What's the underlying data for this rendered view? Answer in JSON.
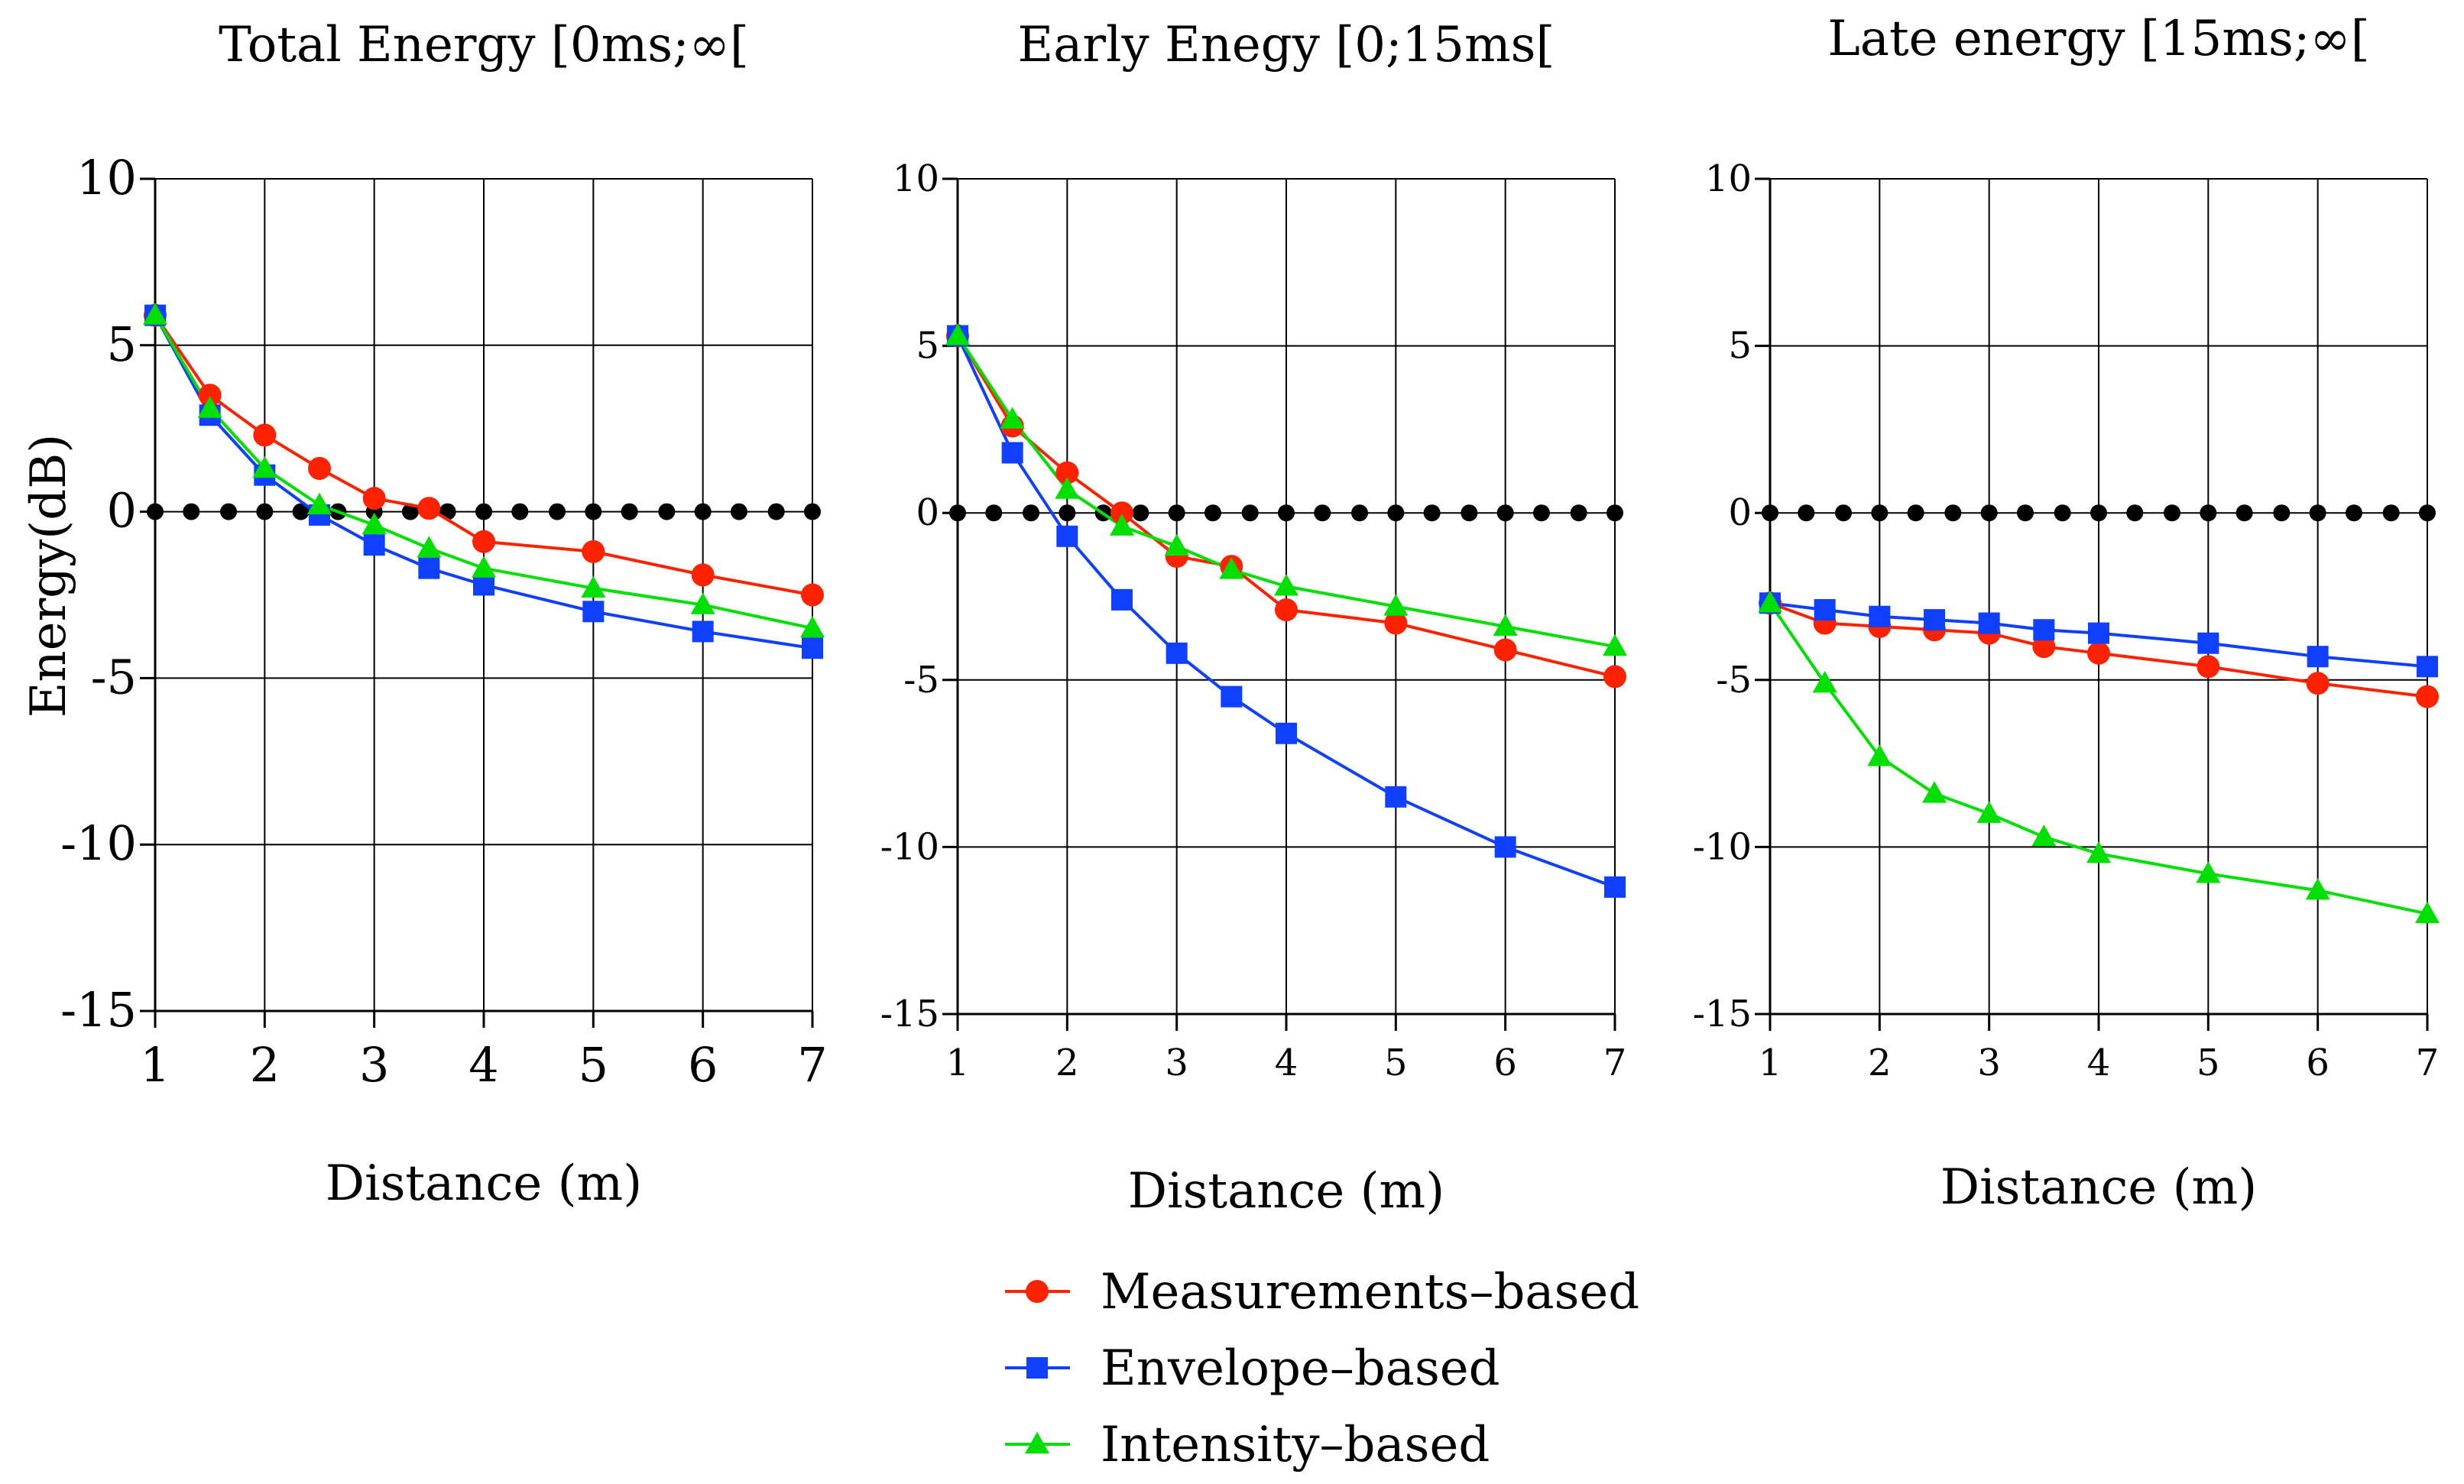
{
  "chart_data": [
    {
      "type": "line",
      "title": "Total Energy [0ms;∞[",
      "xlabel": "Distance (m)",
      "ylabel": "Energy(dB)",
      "xlim": [
        1,
        7
      ],
      "ylim": [
        -15,
        10
      ],
      "xticks": [
        1,
        2,
        3,
        4,
        5,
        6,
        7
      ],
      "xtick_labels": [
        "1",
        "2",
        "3",
        "4",
        "5",
        "6",
        "7"
      ],
      "yticks": [
        -15,
        -10,
        -5,
        0,
        5,
        10
      ],
      "ytick_labels": [
        "-15",
        "-10",
        "-5",
        "0",
        "5",
        "10"
      ],
      "grid": true,
      "x": [
        1,
        1.5,
        2,
        2.5,
        3,
        3.5,
        4,
        5,
        6,
        7
      ],
      "series": [
        {
          "name": "Measurements-based",
          "values": [
            5.9,
            3.5,
            2.3,
            1.3,
            0.4,
            0.1,
            -0.9,
            -1.2,
            -1.9,
            -2.5
          ]
        },
        {
          "name": "Envelope-based",
          "values": [
            5.9,
            2.9,
            1.1,
            -0.1,
            -1.0,
            -1.7,
            -2.2,
            -3.0,
            -3.6,
            -4.1
          ]
        },
        {
          "name": "Intensity-based",
          "values": [
            5.9,
            3.1,
            1.3,
            0.2,
            -0.4,
            -1.1,
            -1.7,
            -2.3,
            -2.8,
            -3.5
          ]
        }
      ],
      "reference_line": {
        "y": 0,
        "x": [
          1,
          1.33,
          1.67,
          2,
          2.33,
          2.67,
          3,
          3.33,
          3.67,
          4,
          4.33,
          4.67,
          5,
          5.33,
          5.67,
          6,
          6.33,
          6.67,
          7
        ]
      }
    },
    {
      "type": "line",
      "title": "Early Enegy [0;15ms[",
      "xlabel": "Distance (m)",
      "xlim": [
        1,
        7
      ],
      "ylim": [
        -15,
        10
      ],
      "xticks": [
        1,
        2,
        3,
        4,
        5,
        6,
        7
      ],
      "xtick_labels": [
        "1",
        "2",
        "3",
        "4",
        "5",
        "6",
        "7"
      ],
      "yticks": [
        -15,
        -10,
        -5,
        0,
        5,
        10
      ],
      "ytick_labels": [
        "-15",
        "-10",
        "-5",
        "0",
        "5",
        "10"
      ],
      "grid": true,
      "x": [
        1,
        1.5,
        2,
        2.5,
        3,
        3.5,
        4,
        5,
        6,
        7
      ],
      "series": [
        {
          "name": "Measurements-based",
          "values": [
            5.3,
            2.6,
            1.2,
            0.0,
            -1.3,
            -1.6,
            -2.9,
            -3.3,
            -4.1,
            -4.9
          ]
        },
        {
          "name": "Envelope-based",
          "values": [
            5.3,
            1.8,
            -0.7,
            -2.6,
            -4.2,
            -5.5,
            -6.6,
            -8.5,
            -10.0,
            -11.2
          ]
        },
        {
          "name": "Intensity-based",
          "values": [
            5.3,
            2.8,
            0.7,
            -0.4,
            -1.0,
            -1.7,
            -2.2,
            -2.8,
            -3.4,
            -4.0
          ]
        }
      ],
      "reference_line": {
        "y": 0,
        "x": [
          1,
          1.33,
          1.67,
          2,
          2.33,
          2.67,
          3,
          3.33,
          3.67,
          4,
          4.33,
          4.67,
          5,
          5.33,
          5.67,
          6,
          6.33,
          6.67,
          7
        ]
      }
    },
    {
      "type": "line",
      "title": "Late energy [15ms;∞[",
      "xlabel": "Distance (m)",
      "xlim": [
        1,
        7
      ],
      "ylim": [
        -15,
        10
      ],
      "xticks": [
        1,
        2,
        3,
        4,
        5,
        6,
        7
      ],
      "xtick_labels": [
        "1",
        "2",
        "3",
        "4",
        "5",
        "6",
        "7"
      ],
      "yticks": [
        -15,
        -10,
        -5,
        0,
        5,
        10
      ],
      "ytick_labels": [
        "-15",
        "-10",
        "-5",
        "0",
        "5",
        "10"
      ],
      "grid": true,
      "x": [
        1,
        1.5,
        2,
        2.5,
        3,
        3.5,
        4,
        5,
        6,
        7
      ],
      "series": [
        {
          "name": "Measurements-based",
          "values": [
            -2.7,
            -3.3,
            -3.4,
            -3.5,
            -3.6,
            -4.0,
            -4.2,
            -4.6,
            -5.1,
            -5.5
          ]
        },
        {
          "name": "Envelope-based",
          "values": [
            -2.7,
            -2.9,
            -3.1,
            -3.2,
            -3.3,
            -3.5,
            -3.6,
            -3.9,
            -4.3,
            -4.6
          ]
        },
        {
          "name": "Intensity-based",
          "values": [
            -2.7,
            -5.1,
            -7.3,
            -8.4,
            -9.0,
            -9.7,
            -10.2,
            -10.8,
            -11.3,
            -12.0
          ]
        }
      ],
      "reference_line": {
        "y": 0,
        "x": [
          1,
          1.33,
          1.67,
          2,
          2.33,
          2.67,
          3,
          3.33,
          3.67,
          4,
          4.33,
          4.67,
          5,
          5.33,
          5.67,
          6,
          6.33,
          6.67,
          7
        ]
      }
    }
  ],
  "legend": {
    "entries": [
      {
        "label": "Measurements–based",
        "marker": "circle",
        "color": "#ff2200"
      },
      {
        "label": "Envelope–based",
        "marker": "square",
        "color": "#1040ff"
      },
      {
        "label": "Intensity–based",
        "marker": "triangle",
        "color": "#00e000"
      }
    ]
  },
  "colors": {
    "measurements": "#ff2200",
    "envelope": "#1040ff",
    "intensity": "#00e000",
    "reference": "#000000"
  }
}
